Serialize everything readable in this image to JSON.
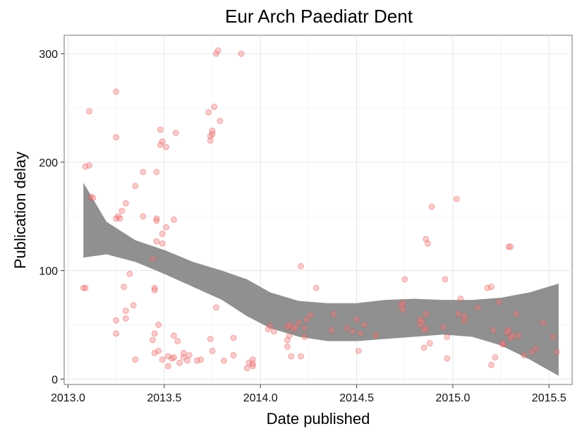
{
  "chart_data": {
    "type": "scatter",
    "title": "Eur Arch Paediatr Dent",
    "xlabel": "Date published",
    "ylabel": "Publication delay",
    "xlim": [
      2012.98,
      2015.62
    ],
    "ylim": [
      -5,
      317
    ],
    "x_ticks": [
      2013.0,
      2013.5,
      2014.0,
      2014.5,
      2015.0,
      2015.5
    ],
    "x_tick_labels": [
      "2013.0",
      "2013.5",
      "2014.0",
      "2014.5",
      "2015.0",
      "2015.5"
    ],
    "y_ticks": [
      0,
      100,
      200,
      300
    ],
    "y_tick_labels": [
      "0",
      "100",
      "200",
      "300"
    ],
    "grid": true,
    "point_color": "#f08080",
    "point_stroke": "#e05050",
    "band_color": "#8a8a8a",
    "points": [
      [
        2013.08,
        84
      ],
      [
        2013.09,
        84
      ],
      [
        2013.09,
        196
      ],
      [
        2013.11,
        197
      ],
      [
        2013.11,
        247
      ],
      [
        2013.12,
        168
      ],
      [
        2013.13,
        167
      ],
      [
        2013.25,
        265
      ],
      [
        2013.25,
        223
      ],
      [
        2013.25,
        148
      ],
      [
        2013.26,
        150
      ],
      [
        2013.27,
        148
      ],
      [
        2013.28,
        155
      ],
      [
        2013.29,
        85
      ],
      [
        2013.3,
        162
      ],
      [
        2013.3,
        63
      ],
      [
        2013.3,
        56
      ],
      [
        2013.25,
        54
      ],
      [
        2013.25,
        42
      ],
      [
        2013.32,
        97
      ],
      [
        2013.34,
        68
      ],
      [
        2013.35,
        18
      ],
      [
        2013.35,
        178
      ],
      [
        2013.39,
        150
      ],
      [
        2013.39,
        191
      ],
      [
        2013.44,
        111
      ],
      [
        2013.44,
        36
      ],
      [
        2013.45,
        42
      ],
      [
        2013.45,
        24
      ],
      [
        2013.45,
        84
      ],
      [
        2013.45,
        82
      ],
      [
        2013.46,
        191
      ],
      [
        2013.46,
        148
      ],
      [
        2013.46,
        146
      ],
      [
        2013.46,
        127
      ],
      [
        2013.47,
        26
      ],
      [
        2013.47,
        50
      ],
      [
        2013.48,
        230
      ],
      [
        2013.48,
        216
      ],
      [
        2013.49,
        219
      ],
      [
        2013.49,
        125
      ],
      [
        2013.49,
        134
      ],
      [
        2013.49,
        18
      ],
      [
        2013.51,
        140
      ],
      [
        2013.51,
        214
      ],
      [
        2013.52,
        21
      ],
      [
        2013.52,
        12
      ],
      [
        2013.54,
        19
      ],
      [
        2013.55,
        20
      ],
      [
        2013.55,
        40
      ],
      [
        2013.55,
        147
      ],
      [
        2013.56,
        227
      ],
      [
        2013.57,
        35
      ],
      [
        2013.58,
        15
      ],
      [
        2013.6,
        20
      ],
      [
        2013.6,
        24
      ],
      [
        2013.62,
        17
      ],
      [
        2013.63,
        22
      ],
      [
        2013.67,
        17
      ],
      [
        2013.69,
        18
      ],
      [
        2013.73,
        246
      ],
      [
        2013.74,
        37
      ],
      [
        2013.74,
        220
      ],
      [
        2013.74,
        224
      ],
      [
        2013.75,
        226
      ],
      [
        2013.75,
        229
      ],
      [
        2013.75,
        26
      ],
      [
        2013.76,
        251
      ],
      [
        2013.77,
        300
      ],
      [
        2013.78,
        303
      ],
      [
        2013.77,
        66
      ],
      [
        2013.79,
        238
      ],
      [
        2013.81,
        17
      ],
      [
        2013.86,
        22
      ],
      [
        2013.86,
        38
      ],
      [
        2013.9,
        300
      ],
      [
        2013.93,
        10
      ],
      [
        2013.94,
        15
      ],
      [
        2013.96,
        12
      ],
      [
        2013.96,
        18
      ],
      [
        2013.96,
        14
      ],
      [
        2014.04,
        46
      ],
      [
        2014.05,
        49
      ],
      [
        2014.07,
        44
      ],
      [
        2014.14,
        48
      ],
      [
        2014.14,
        36
      ],
      [
        2014.14,
        30
      ],
      [
        2014.15,
        50
      ],
      [
        2014.15,
        40
      ],
      [
        2014.16,
        21
      ],
      [
        2014.17,
        46
      ],
      [
        2014.18,
        48
      ],
      [
        2014.2,
        52
      ],
      [
        2014.21,
        104
      ],
      [
        2014.21,
        21
      ],
      [
        2014.23,
        47
      ],
      [
        2014.23,
        39
      ],
      [
        2014.24,
        55
      ],
      [
        2014.26,
        59
      ],
      [
        2014.29,
        84
      ],
      [
        2014.37,
        45
      ],
      [
        2014.38,
        60
      ],
      [
        2014.45,
        47
      ],
      [
        2014.48,
        44
      ],
      [
        2014.5,
        55
      ],
      [
        2014.51,
        26
      ],
      [
        2014.52,
        42
      ],
      [
        2014.54,
        50
      ],
      [
        2014.6,
        40
      ],
      [
        2014.73,
        68
      ],
      [
        2014.74,
        70
      ],
      [
        2014.74,
        64
      ],
      [
        2014.75,
        92
      ],
      [
        2014.83,
        50
      ],
      [
        2014.83,
        55
      ],
      [
        2014.84,
        53
      ],
      [
        2014.85,
        45
      ],
      [
        2014.86,
        60
      ],
      [
        2014.86,
        129
      ],
      [
        2014.87,
        125
      ],
      [
        2014.88,
        33
      ],
      [
        2014.85,
        29
      ],
      [
        2014.86,
        47
      ],
      [
        2014.89,
        159
      ],
      [
        2014.95,
        48
      ],
      [
        2014.96,
        92
      ],
      [
        2014.97,
        19
      ],
      [
        2014.97,
        39
      ],
      [
        2015.02,
        166
      ],
      [
        2015.03,
        60
      ],
      [
        2015.04,
        74
      ],
      [
        2015.06,
        54
      ],
      [
        2015.06,
        58
      ],
      [
        2015.13,
        66
      ],
      [
        2015.18,
        84
      ],
      [
        2015.2,
        85
      ],
      [
        2015.2,
        13
      ],
      [
        2015.21,
        45
      ],
      [
        2015.22,
        20
      ],
      [
        2015.24,
        71
      ],
      [
        2015.26,
        32
      ],
      [
        2015.26,
        33
      ],
      [
        2015.28,
        43
      ],
      [
        2015.29,
        45
      ],
      [
        2015.29,
        122
      ],
      [
        2015.3,
        122
      ],
      [
        2015.3,
        38
      ],
      [
        2015.31,
        40
      ],
      [
        2015.33,
        60
      ],
      [
        2015.34,
        40
      ],
      [
        2015.37,
        22
      ],
      [
        2015.41,
        25
      ],
      [
        2015.43,
        28
      ],
      [
        2015.47,
        52
      ],
      [
        2015.52,
        39
      ],
      [
        2015.54,
        25
      ]
    ],
    "smooth_band": [
      {
        "x": 2013.08,
        "lower": 112,
        "upper": 181
      },
      {
        "x": 2013.2,
        "lower": 115,
        "upper": 145
      },
      {
        "x": 2013.35,
        "lower": 108,
        "upper": 128
      },
      {
        "x": 2013.5,
        "lower": 97,
        "upper": 119
      },
      {
        "x": 2013.65,
        "lower": 85,
        "upper": 108
      },
      {
        "x": 2013.8,
        "lower": 73,
        "upper": 100
      },
      {
        "x": 2013.93,
        "lower": 58,
        "upper": 92
      },
      {
        "x": 2014.05,
        "lower": 47,
        "upper": 80
      },
      {
        "x": 2014.2,
        "lower": 39,
        "upper": 72
      },
      {
        "x": 2014.35,
        "lower": 35,
        "upper": 70
      },
      {
        "x": 2014.5,
        "lower": 35,
        "upper": 70
      },
      {
        "x": 2014.65,
        "lower": 37,
        "upper": 73
      },
      {
        "x": 2014.8,
        "lower": 39,
        "upper": 74
      },
      {
        "x": 2014.95,
        "lower": 41,
        "upper": 73
      },
      {
        "x": 2015.1,
        "lower": 39,
        "upper": 73
      },
      {
        "x": 2015.25,
        "lower": 31,
        "upper": 75
      },
      {
        "x": 2015.4,
        "lower": 18,
        "upper": 80
      },
      {
        "x": 2015.55,
        "lower": 3,
        "upper": 88
      }
    ]
  }
}
